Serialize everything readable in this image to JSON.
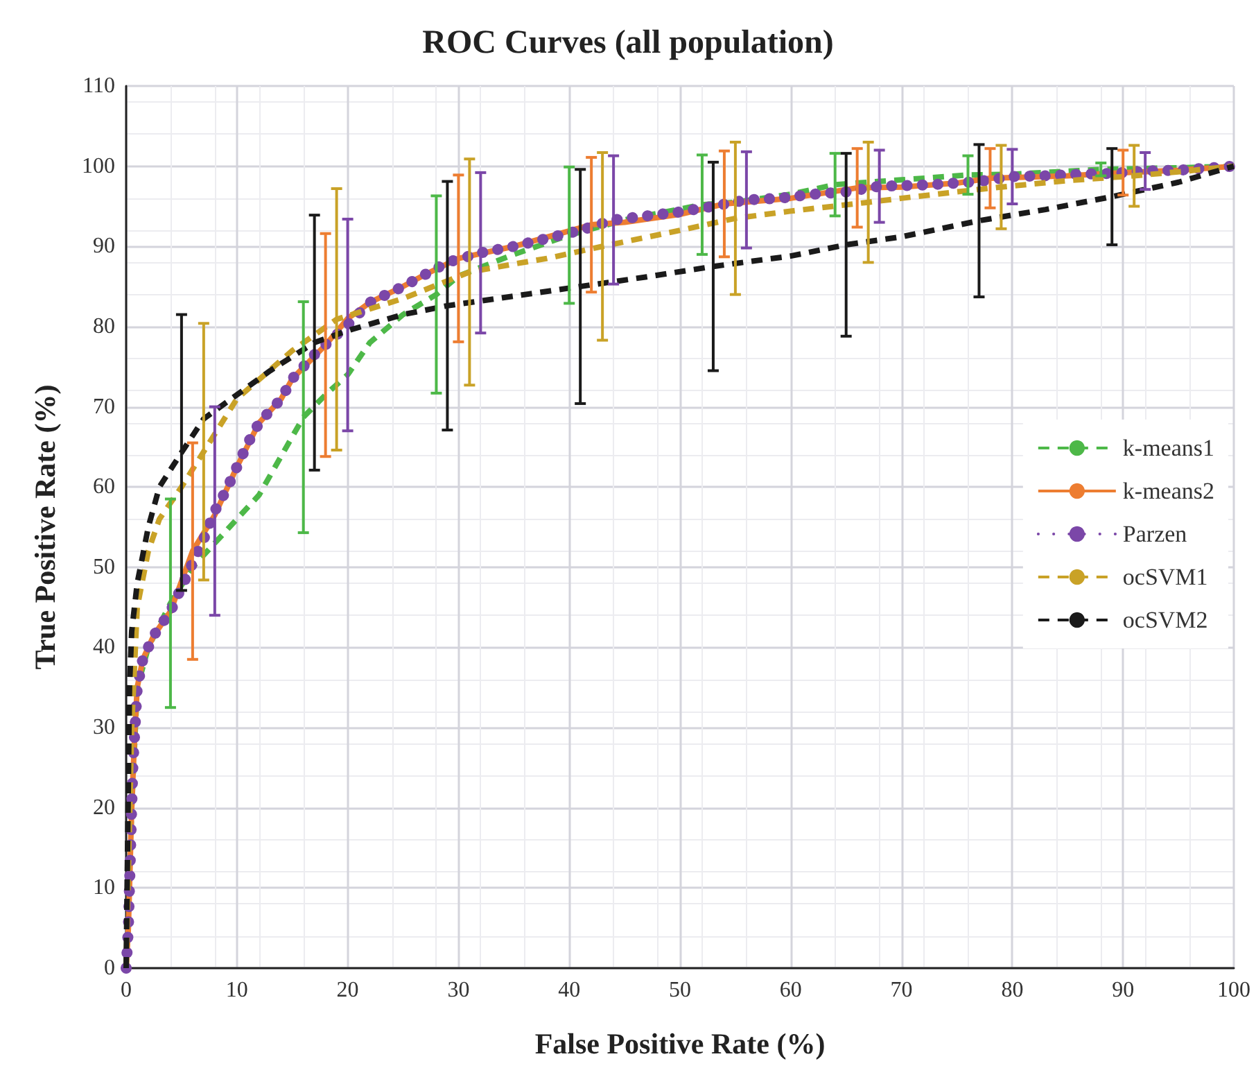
{
  "chart_data": {
    "type": "line",
    "title": "ROC Curves (all population)",
    "xlabel": "False Positive Rate (%)",
    "ylabel": "True Positive Rate (%)",
    "xlim": [
      0,
      100
    ],
    "xticks": [
      0,
      10,
      20,
      30,
      40,
      50,
      60,
      70,
      80,
      90,
      100
    ],
    "ylim": [
      0,
      110
    ],
    "yticks": [
      0,
      10,
      20,
      30,
      40,
      50,
      60,
      70,
      80,
      90,
      100,
      110
    ],
    "grid": true,
    "legend": "right",
    "marker": "none",
    "series": [
      {
        "name": "k-means1",
        "color": "#4db848",
        "line_style": "dashed",
        "x": [
          0,
          0.5,
          1,
          2,
          4,
          6,
          8,
          10,
          12,
          16,
          18,
          20,
          22,
          25,
          28,
          30,
          35,
          40,
          45,
          52,
          55,
          60,
          64,
          70,
          76,
          80,
          88,
          95,
          100
        ],
        "values": [
          0,
          20,
          35,
          40,
          45.5,
          50,
          53,
          56,
          59,
          68.7,
          71.5,
          74,
          78,
          81.5,
          84,
          86.3,
          89,
          91.4,
          93.3,
          95.2,
          95.5,
          96.5,
          97.7,
          98.3,
          98.9,
          99,
          99.6,
          99.8,
          100
        ],
        "errors": [
          null,
          null,
          null,
          null,
          13,
          null,
          null,
          null,
          null,
          14.4,
          null,
          null,
          null,
          null,
          12.3,
          null,
          null,
          8.5,
          null,
          6.2,
          null,
          null,
          3.9,
          null,
          2.4,
          null,
          0.8,
          null,
          null
        ]
      },
      {
        "name": "k-means2",
        "color": "#ed7d31",
        "line_style": "solid",
        "x": [
          0,
          0.2,
          0.3,
          0.5,
          0.8,
          1,
          1.5,
          2.5,
          4,
          6,
          8,
          10,
          12,
          14,
          15,
          18,
          20,
          22,
          25,
          27,
          30,
          35,
          42,
          45,
          50,
          54,
          60,
          66,
          70,
          75,
          78,
          85,
          90,
          95,
          100
        ],
        "values": [
          0,
          5,
          10,
          20,
          30,
          35,
          38.5,
          41.5,
          44.5,
          52,
          56.5,
          62.5,
          68,
          71,
          73.5,
          77.7,
          81,
          83,
          85,
          86.5,
          88.5,
          90,
          92.7,
          93,
          94,
          95.3,
          96,
          97.3,
          97.4,
          97.9,
          98.5,
          98.8,
          99.2,
          99.5,
          100
        ],
        "errors": [
          null,
          null,
          null,
          null,
          null,
          null,
          null,
          null,
          null,
          13.5,
          null,
          null,
          null,
          null,
          null,
          13.9,
          null,
          null,
          null,
          null,
          10.4,
          null,
          8.4,
          null,
          null,
          6.6,
          null,
          4.9,
          null,
          null,
          3.7,
          null,
          2.8,
          null,
          null
        ]
      },
      {
        "name": "Parzen",
        "color": "#7b47a8",
        "line_style": "dotted",
        "x": [
          0,
          0.1,
          0.2,
          0.3,
          0.4,
          0.5,
          0.6,
          0.8,
          1,
          1.5,
          2.5,
          4,
          5,
          6,
          7,
          8,
          9,
          10,
          11,
          12,
          14,
          15,
          17,
          20,
          22,
          25,
          27,
          29,
          32,
          35,
          38,
          41,
          44,
          47,
          50,
          53,
          56,
          59,
          62,
          65,
          68,
          71,
          74,
          77,
          80,
          83,
          86,
          89,
          92,
          95,
          98,
          100
        ],
        "values": [
          0,
          2.5,
          5,
          10,
          15,
          20,
          25,
          30,
          35,
          38.5,
          41.5,
          44.5,
          47.5,
          50.5,
          53.5,
          57,
          59.5,
          62.5,
          65.5,
          68,
          71,
          73.5,
          76.5,
          80.2,
          83,
          85,
          86.5,
          88,
          89.2,
          90,
          91,
          92,
          93.3,
          93.8,
          94.3,
          95,
          95.8,
          96,
          96.5,
          96.8,
          97.5,
          97.6,
          97.8,
          98.1,
          98.7,
          98.8,
          99,
          99.1,
          99.4,
          99.5,
          99.8,
          100
        ],
        "errors": [
          null,
          null,
          null,
          null,
          null,
          null,
          null,
          null,
          null,
          null,
          null,
          null,
          null,
          null,
          null,
          13,
          null,
          null,
          null,
          null,
          null,
          null,
          null,
          13.2,
          null,
          null,
          null,
          null,
          10,
          null,
          null,
          null,
          8,
          null,
          null,
          null,
          6,
          null,
          null,
          null,
          4.5,
          null,
          null,
          null,
          3.4,
          null,
          null,
          null,
          2.3,
          null,
          null,
          null
        ]
      },
      {
        "name": "ocSVM1",
        "color": "#c9a227",
        "line_style": "dashed",
        "x": [
          0,
          0.5,
          1,
          2,
          3,
          4,
          5,
          7,
          10,
          15,
          19,
          25,
          31,
          35,
          38,
          43,
          50,
          55,
          60,
          67,
          70,
          75,
          79,
          85,
          91,
          95,
          100
        ],
        "values": [
          0,
          30,
          45,
          52,
          56,
          58,
          60,
          64.4,
          71,
          77,
          80.9,
          83.5,
          86.8,
          87.8,
          88.5,
          90,
          92,
          93.5,
          94.4,
          95.5,
          96,
          96.8,
          97.4,
          98.2,
          98.8,
          99.3,
          100
        ],
        "errors": [
          null,
          null,
          null,
          null,
          null,
          null,
          null,
          16,
          null,
          null,
          16.3,
          null,
          14.1,
          null,
          null,
          11.7,
          null,
          9.5,
          null,
          7.5,
          null,
          null,
          5.2,
          null,
          3.8,
          null,
          null
        ]
      },
      {
        "name": "ocSVM2",
        "color": "#1a1a1a",
        "line_style": "dashed",
        "x": [
          0,
          0.3,
          0.5,
          1,
          2,
          3,
          5,
          7,
          10,
          13,
          17,
          20,
          25,
          29,
          35,
          41,
          47,
          53,
          60,
          65,
          70,
          77,
          83,
          89,
          95,
          100
        ],
        "values": [
          0,
          35,
          42,
          48,
          55,
          60,
          64.3,
          68.5,
          71.5,
          74.5,
          78,
          79.5,
          81.5,
          82.6,
          83.8,
          85,
          86.2,
          87.5,
          88.8,
          90.2,
          91.2,
          93.2,
          94.6,
          96.2,
          98,
          100
        ],
        "errors": [
          null,
          null,
          null,
          null,
          null,
          null,
          17.2,
          null,
          null,
          null,
          15.9,
          null,
          null,
          15.5,
          null,
          14.6,
          null,
          13,
          null,
          11.4,
          null,
          9.5,
          null,
          6,
          null,
          null
        ]
      }
    ]
  }
}
